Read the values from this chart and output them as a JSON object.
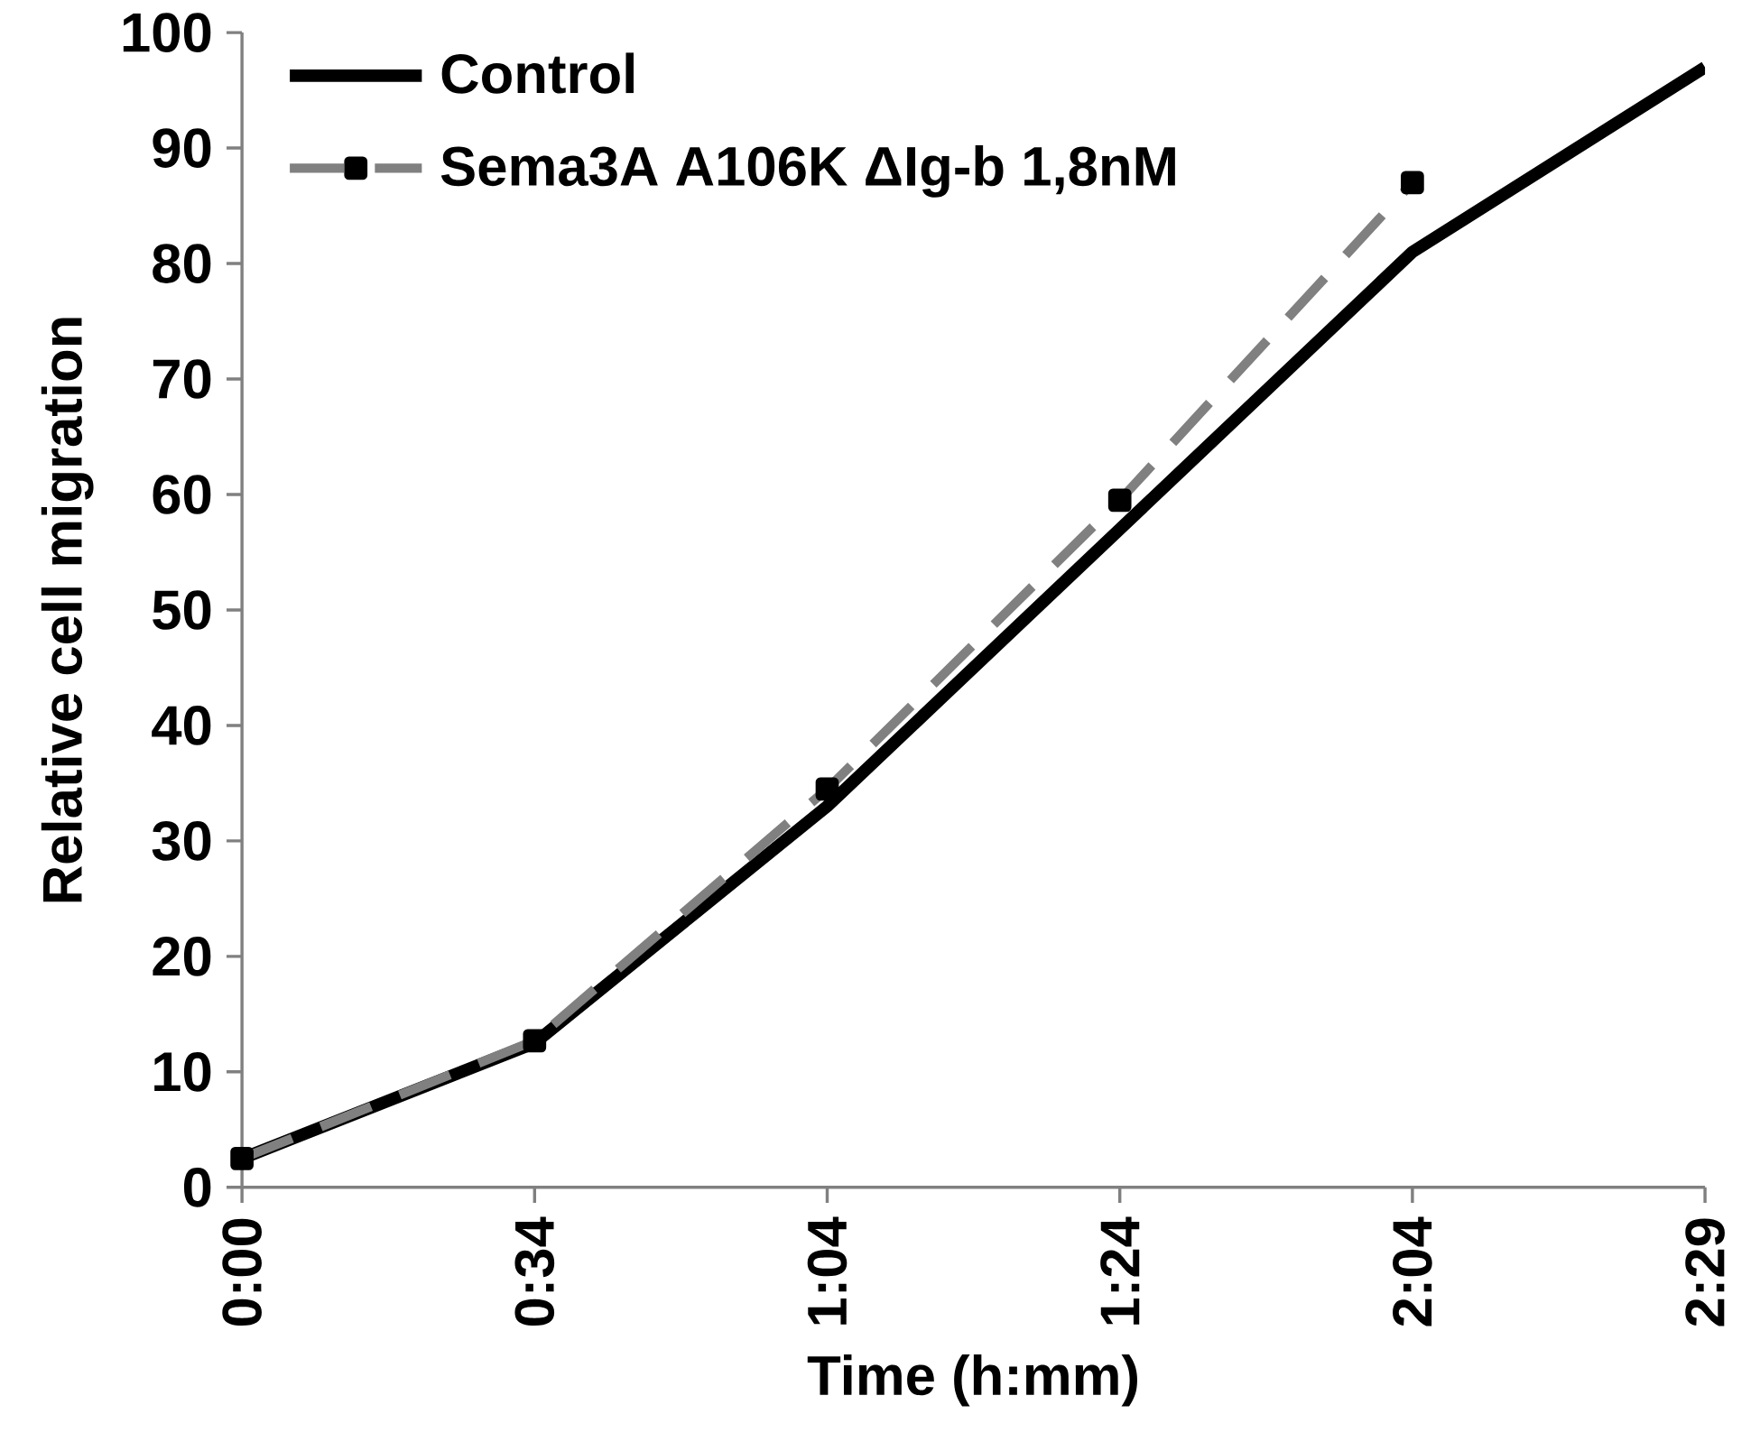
{
  "chart_data": {
    "type": "line",
    "xlabel": "Time (h:mm)",
    "ylabel": "Relative cell migration",
    "categories": [
      "0:00",
      "0:34",
      "1:04",
      "1:24",
      "2:04",
      "2:29"
    ],
    "series": [
      {
        "name": "Control",
        "color": "#000000",
        "values": [
          2.5,
          12.5,
          33,
          57,
          81,
          97
        ],
        "line_style": "solid",
        "marker": "none"
      },
      {
        "name": "Sema3A A106K ΔIg-b 1,8nM",
        "color": "#808080",
        "values": [
          2.5,
          12.7,
          34.5,
          59.5,
          87,
          null
        ],
        "line_style": "dashed",
        "marker": "square"
      }
    ],
    "ylim": [
      0,
      100
    ],
    "yticks": [
      0,
      10,
      20,
      30,
      40,
      50,
      60,
      70,
      80,
      90,
      100
    ],
    "grid": false,
    "legend": "top left"
  }
}
